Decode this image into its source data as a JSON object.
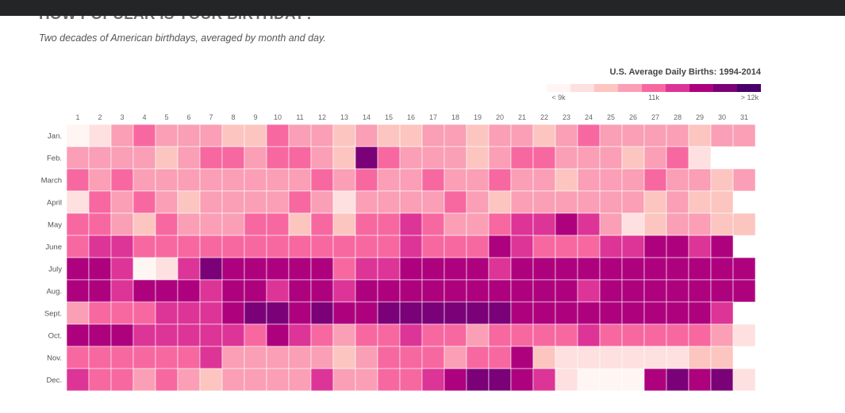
{
  "page": {
    "title": "HOW POPULAR IS YOUR BIRTHDAY?",
    "subtitle": "Two decades of American birthdays, averaged by month and day."
  },
  "chart_data": {
    "type": "heatmap",
    "title": "HOW POPULAR IS YOUR BIRTHDAY?",
    "subtitle": "Two decades of American birthdays, averaged by month and day.",
    "legend": {
      "title": "U.S. Average Daily Births: 1994-2014",
      "labels": [
        "< 9k",
        "11k",
        "> 12k"
      ],
      "colors": [
        "#fff5f3",
        "#fde0df",
        "#fcc5c0",
        "#fa9fb5",
        "#f768a1",
        "#dd3497",
        "#ae017e",
        "#7a0177",
        "#49006a"
      ],
      "placement": "top-right"
    },
    "x_labels": [
      "1",
      "2",
      "3",
      "4",
      "5",
      "6",
      "7",
      "8",
      "9",
      "10",
      "11",
      "12",
      "13",
      "14",
      "15",
      "16",
      "17",
      "18",
      "19",
      "20",
      "21",
      "22",
      "23",
      "24",
      "25",
      "26",
      "27",
      "28",
      "29",
      "30",
      "31"
    ],
    "y_labels": [
      "Jan.",
      "Feb.",
      "March",
      "April",
      "May",
      "June",
      "July",
      "Aug.",
      "Sept.",
      "Oct.",
      "Nov.",
      "Dec."
    ],
    "value_scale": "color bins 0 (lowest, < 9k) to 8 (highest, > 12k)",
    "values": [
      [
        0,
        1,
        3,
        4,
        3,
        3,
        3,
        2,
        2,
        4,
        3,
        3,
        2,
        3,
        2,
        2,
        3,
        3,
        2,
        3,
        3,
        2,
        3,
        4,
        3,
        3,
        3,
        3,
        2,
        3,
        3
      ],
      [
        3,
        3,
        3,
        3,
        2,
        3,
        4,
        4,
        3,
        4,
        4,
        3,
        2,
        7,
        4,
        3,
        3,
        3,
        2,
        3,
        4,
        4,
        3,
        3,
        3,
        2,
        3,
        4,
        1,
        null,
        null
      ],
      [
        4,
        3,
        4,
        3,
        3,
        3,
        3,
        3,
        3,
        3,
        3,
        4,
        3,
        4,
        3,
        3,
        4,
        3,
        3,
        4,
        3,
        3,
        2,
        3,
        3,
        3,
        4,
        3,
        3,
        2,
        3
      ],
      [
        1,
        4,
        3,
        4,
        3,
        2,
        3,
        3,
        3,
        3,
        4,
        3,
        1,
        3,
        3,
        3,
        3,
        4,
        3,
        2,
        3,
        3,
        3,
        3,
        3,
        3,
        2,
        3,
        2,
        2,
        null
      ],
      [
        4,
        4,
        3,
        2,
        4,
        3,
        3,
        3,
        4,
        4,
        2,
        4,
        2,
        4,
        4,
        5,
        4,
        3,
        3,
        4,
        5,
        5,
        6,
        5,
        3,
        1,
        2,
        3,
        3,
        2,
        2
      ],
      [
        4,
        5,
        5,
        4,
        4,
        4,
        4,
        4,
        4,
        4,
        4,
        4,
        4,
        4,
        4,
        5,
        4,
        4,
        4,
        6,
        5,
        4,
        4,
        4,
        5,
        5,
        6,
        6,
        5,
        6,
        null
      ],
      [
        6,
        6,
        5,
        0,
        1,
        5,
        7,
        6,
        6,
        6,
        6,
        6,
        4,
        5,
        5,
        6,
        6,
        6,
        6,
        5,
        6,
        6,
        6,
        6,
        6,
        6,
        6,
        6,
        6,
        6,
        6
      ],
      [
        6,
        6,
        5,
        6,
        6,
        6,
        5,
        6,
        6,
        5,
        6,
        6,
        5,
        6,
        6,
        6,
        6,
        6,
        6,
        6,
        6,
        6,
        6,
        5,
        6,
        6,
        6,
        6,
        6,
        6,
        6
      ],
      [
        3,
        4,
        4,
        4,
        5,
        5,
        5,
        6,
        7,
        7,
        6,
        7,
        6,
        6,
        7,
        7,
        7,
        7,
        7,
        7,
        6,
        6,
        6,
        6,
        6,
        6,
        6,
        6,
        6,
        5,
        null
      ],
      [
        6,
        6,
        6,
        5,
        5,
        5,
        5,
        5,
        4,
        6,
        5,
        4,
        3,
        4,
        4,
        5,
        4,
        4,
        3,
        4,
        4,
        4,
        4,
        5,
        4,
        4,
        4,
        4,
        4,
        3,
        1
      ],
      [
        4,
        4,
        4,
        4,
        4,
        4,
        5,
        3,
        3,
        3,
        3,
        3,
        2,
        3,
        4,
        4,
        4,
        3,
        4,
        4,
        6,
        2,
        1,
        1,
        1,
        1,
        1,
        1,
        2,
        2,
        null
      ],
      [
        5,
        4,
        4,
        3,
        4,
        3,
        2,
        3,
        3,
        3,
        3,
        5,
        3,
        3,
        4,
        4,
        5,
        6,
        7,
        7,
        6,
        5,
        1,
        0,
        0,
        0,
        6,
        7,
        6,
        7,
        1
      ]
    ]
  }
}
